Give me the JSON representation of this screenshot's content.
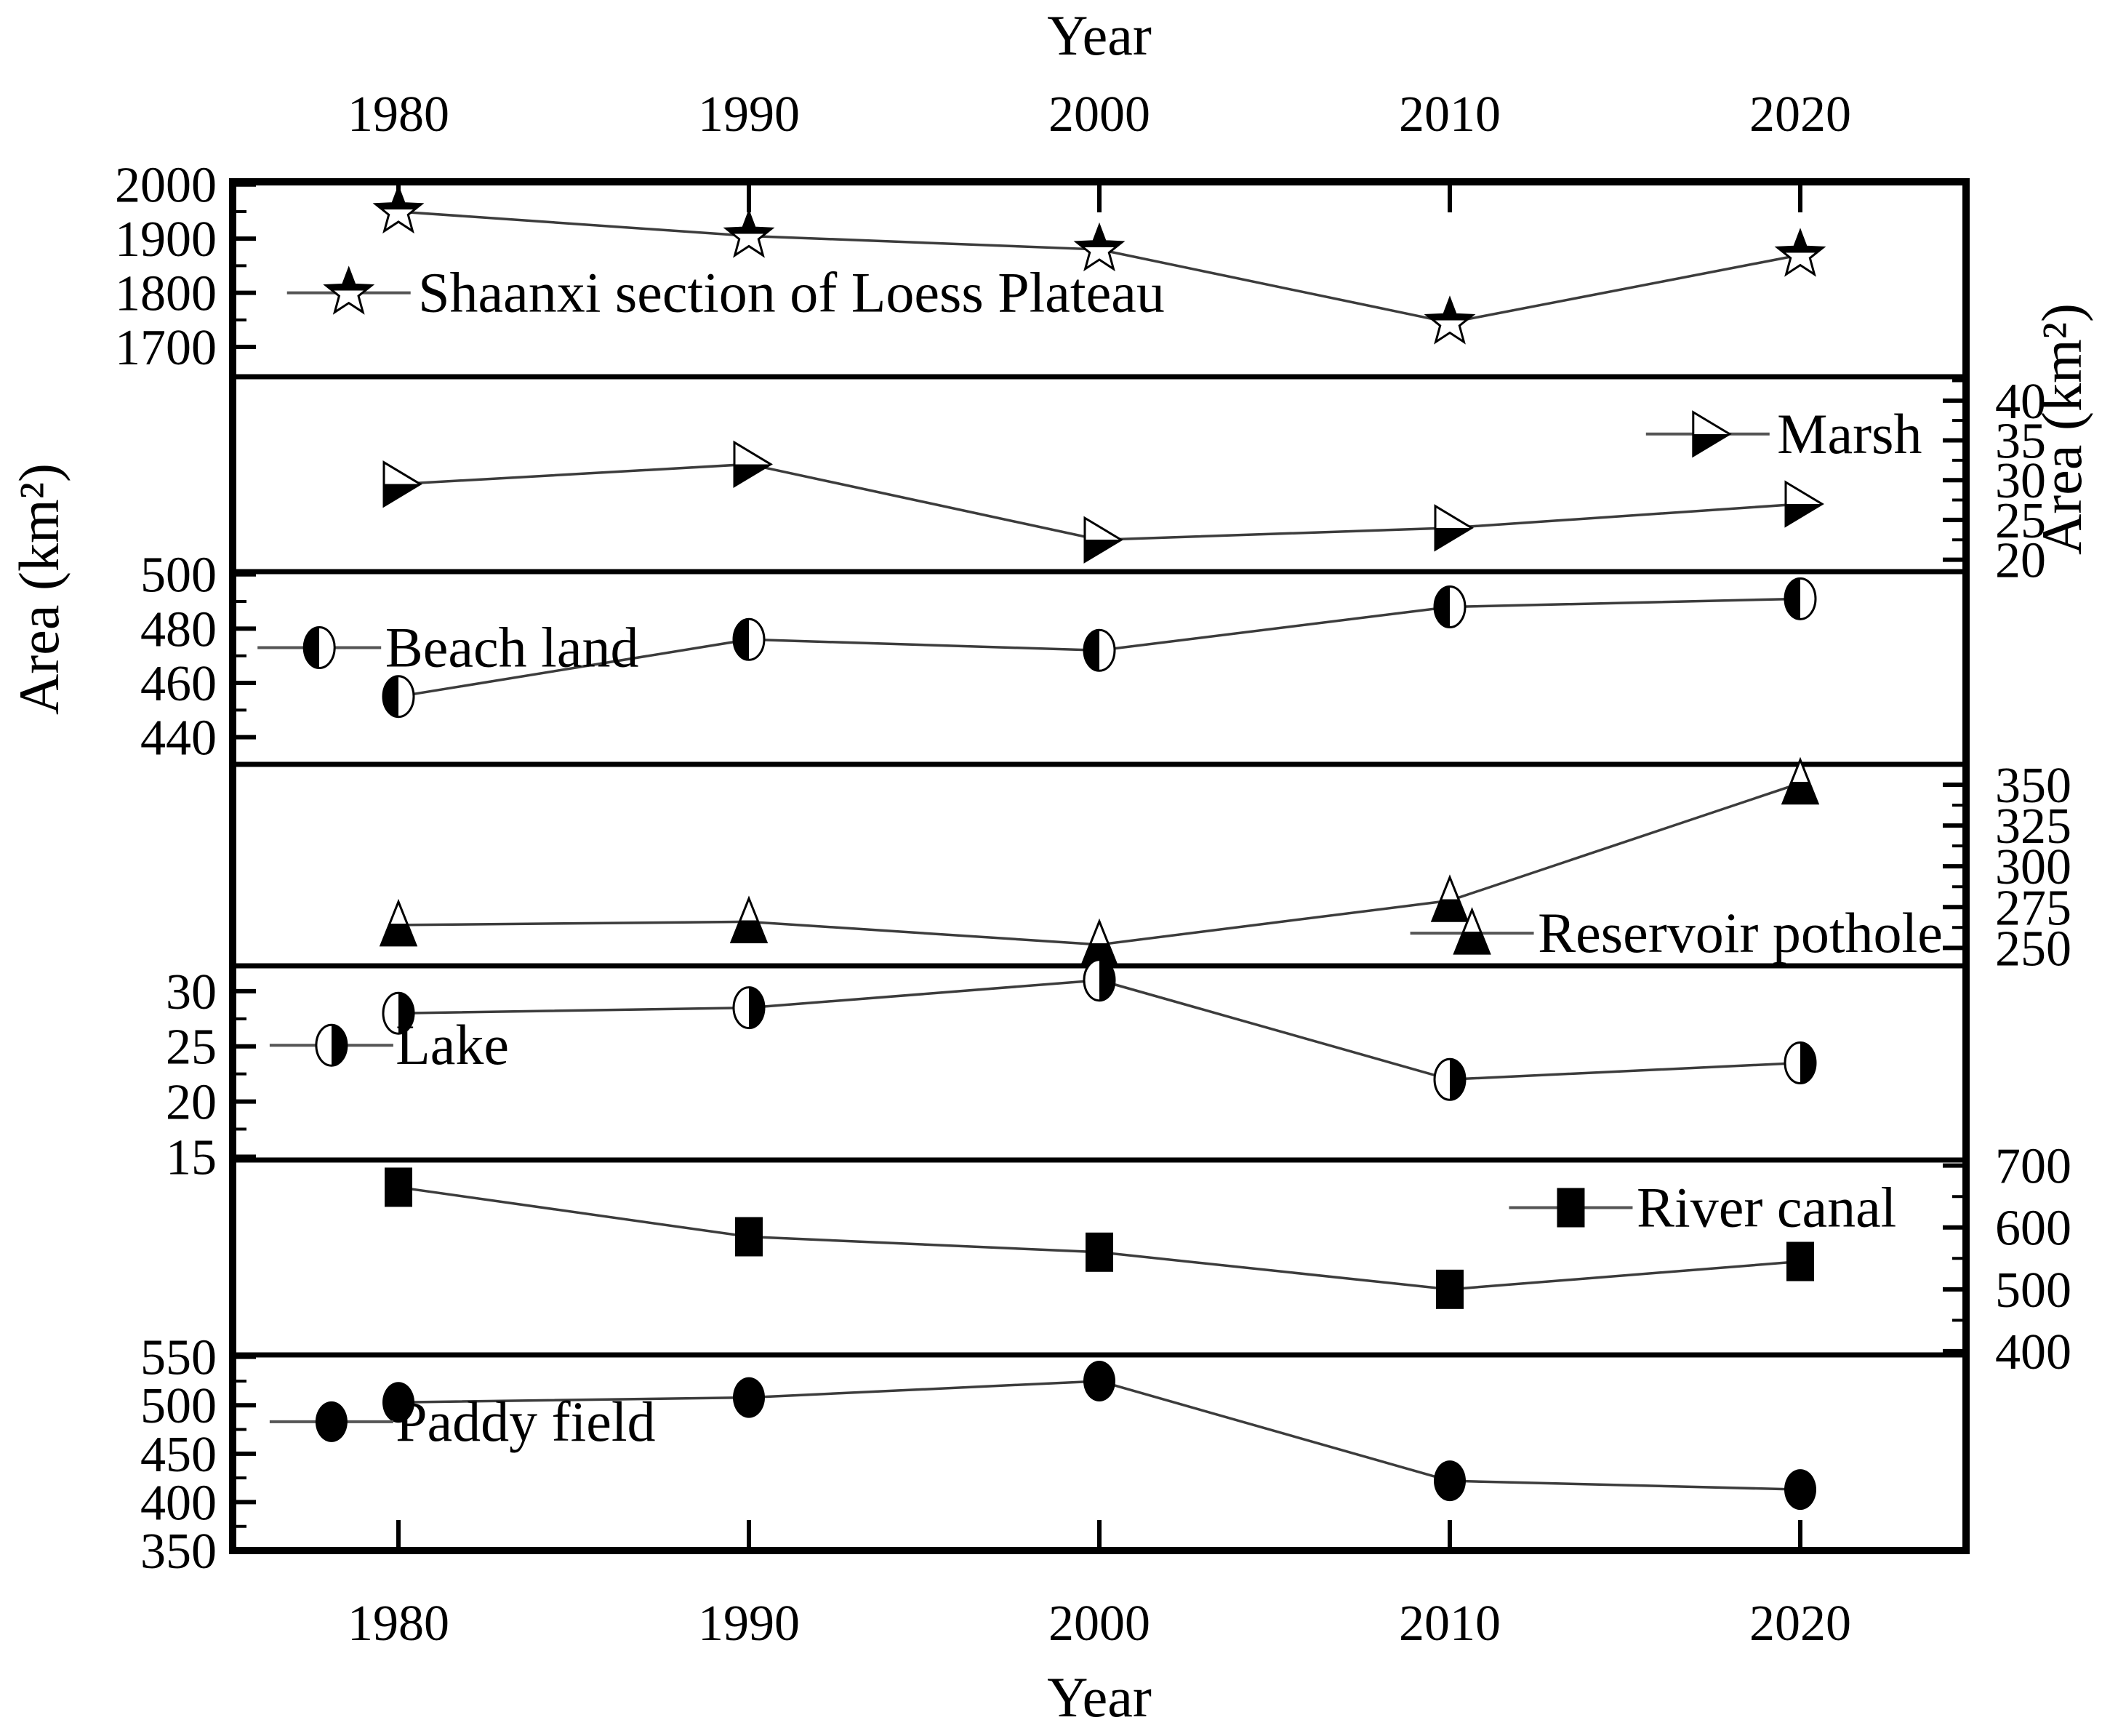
{
  "figure_kind": "multi-panel line chart",
  "colors": {
    "foreground": "#000000",
    "background": "#ffffff",
    "series_line": "#3c3c3c",
    "legend_line": "#555555"
  },
  "chart_data": {
    "type": "line",
    "x": [
      1980,
      1990,
      2000,
      2010,
      2020
    ],
    "xlabel_top": "Year",
    "xlabel_bottom": "Year",
    "ylabel_left": "Area (km²)",
    "ylabel_right": "Area (km²)",
    "x_tick_labels_top": [
      "1980",
      "1990",
      "2000",
      "2010",
      "2020"
    ],
    "x_tick_labels_bottom": [
      "1980",
      "1990",
      "2000",
      "2010",
      "2020"
    ],
    "grid": false,
    "panels": [
      {
        "name": "Shaanxi section of Loess Plateau",
        "marker": "star-half-top",
        "axis_side": "left",
        "ylim": [
          1645,
          2005
        ],
        "ticks": [
          2000,
          1900,
          1800,
          1700
        ],
        "minor_step": 50,
        "values": [
          1950,
          1905,
          1880,
          1745,
          1870
        ],
        "legend": {
          "marker_frac": 0.067,
          "text_frac": 0.107,
          "value": 1800
        }
      },
      {
        "name": "Marsh",
        "marker": "triangle-right-half-bottom",
        "axis_side": "right",
        "ylim": [
          18.5,
          43
        ],
        "ticks": [
          40,
          35,
          30,
          25,
          20
        ],
        "minor_step": 2.5,
        "values": [
          29.5,
          32,
          22.5,
          24,
          27
        ],
        "legend": {
          "marker_frac": 0.851,
          "text_frac": 0.891,
          "value": 35.8
        }
      },
      {
        "name": "Beach land",
        "marker": "circle-half-left",
        "axis_side": "left",
        "ylim": [
          430,
          501
        ],
        "ticks": [
          500,
          480,
          460,
          440
        ],
        "minor_step": 10,
        "values": [
          455,
          476,
          472,
          488,
          491
        ],
        "legend": {
          "marker_frac": 0.05,
          "text_frac": 0.088,
          "value": 473
        }
      },
      {
        "name": "Reservoir pothole",
        "marker": "triangle-up-half-bottom",
        "axis_side": "right",
        "ylim": [
          239,
          362.5
        ],
        "ticks": [
          350,
          325,
          300,
          275,
          250
        ],
        "minor_step": 12.5,
        "values": [
          264,
          266,
          252,
          279,
          351
        ],
        "legend": {
          "marker_frac": 0.715,
          "text_frac": 0.753,
          "value": 259
        }
      },
      {
        "name": "Lake",
        "marker": "circle-half-right",
        "axis_side": "left",
        "ylim": [
          14.7,
          32.3
        ],
        "ticks": [
          30,
          25,
          20,
          15
        ],
        "minor_step": 2.5,
        "values": [
          28,
          28.5,
          31,
          22,
          23.5
        ],
        "legend": {
          "marker_frac": 0.057,
          "text_frac": 0.094,
          "value": 25.1
        }
      },
      {
        "name": "River canal",
        "marker": "square-filled",
        "axis_side": "right",
        "ylim": [
          394,
          709
        ],
        "ticks": [
          700,
          600,
          500,
          400
        ],
        "minor_step": 50,
        "values": [
          665,
          585,
          560,
          500,
          545
        ],
        "legend": {
          "marker_frac": 0.772,
          "text_frac": 0.81,
          "value": 632
        }
      },
      {
        "name": "Paddy field",
        "marker": "circle-filled",
        "axis_side": "left",
        "ylim": [
          350,
          552
        ],
        "ticks": [
          550,
          500,
          450,
          400,
          350
        ],
        "minor_step": 25,
        "values": [
          503,
          508,
          525,
          422,
          413
        ],
        "legend": {
          "marker_frac": 0.057,
          "text_frac": 0.094,
          "value": 483
        }
      }
    ]
  }
}
